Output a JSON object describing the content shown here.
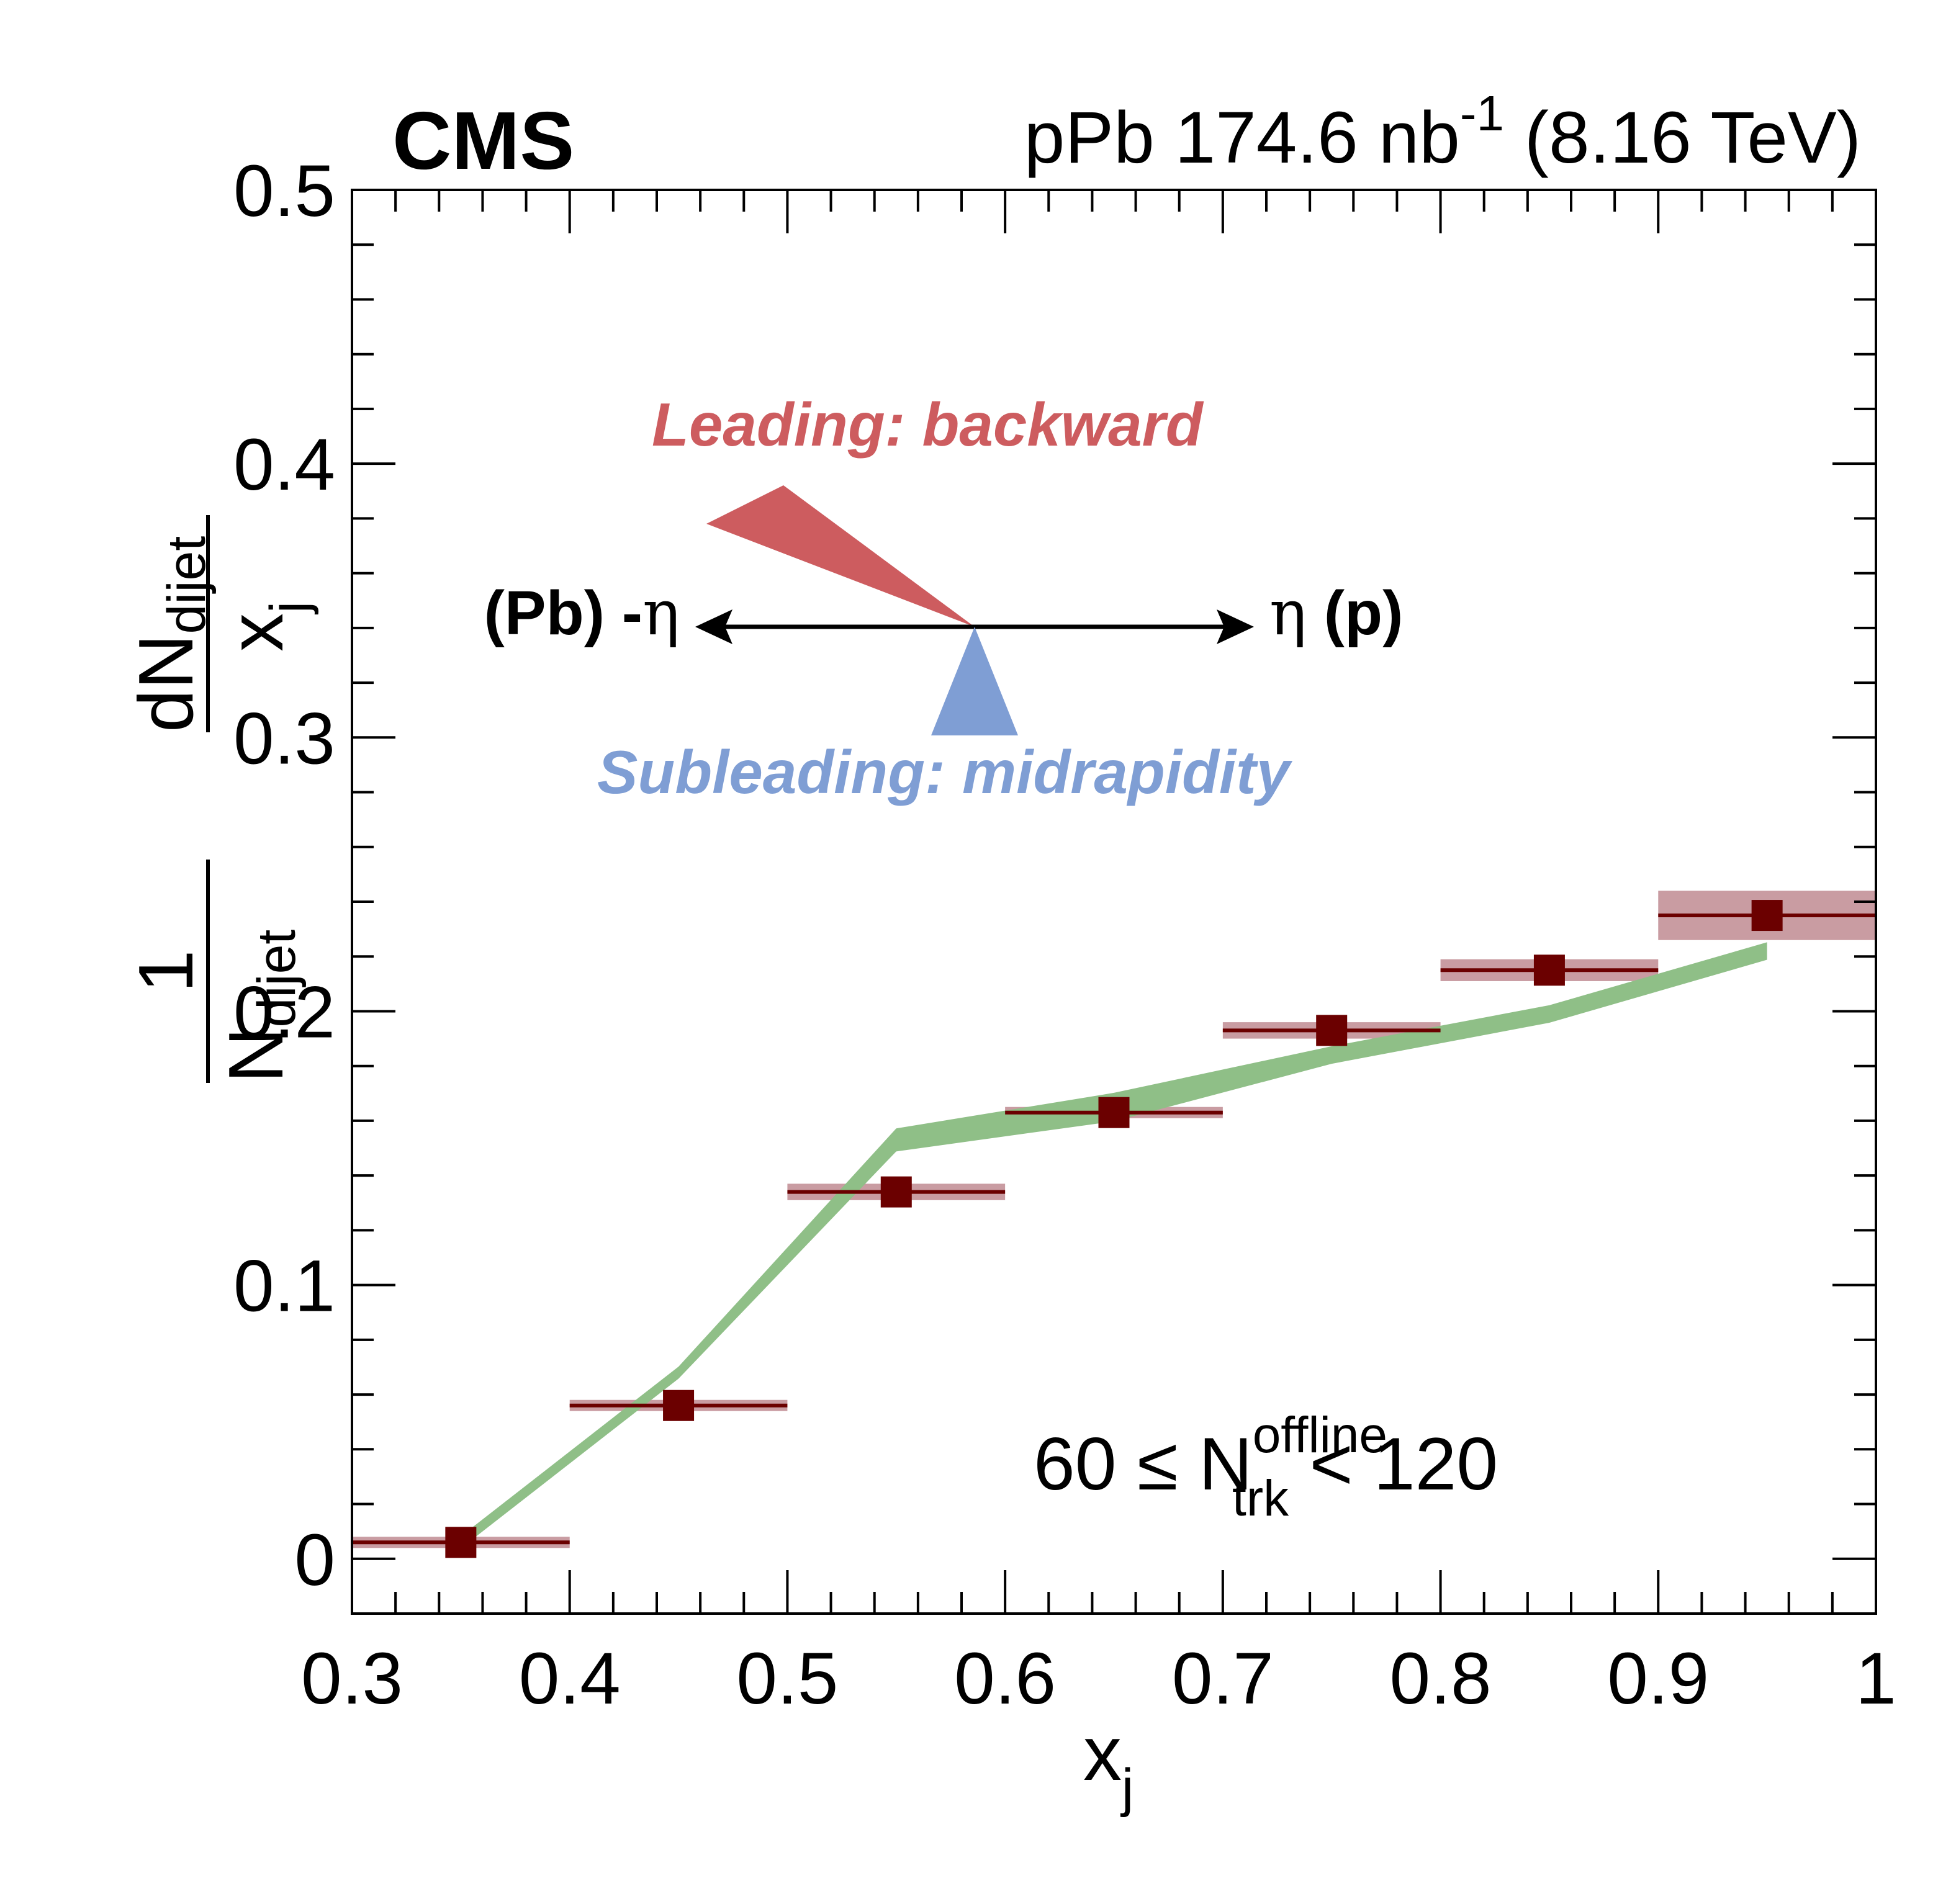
{
  "header": {
    "experiment": "CMS",
    "lumi_prefix": "pPb 174.6 nb",
    "lumi_exp": "-1",
    "lumi_suffix": " (8.16 TeV)"
  },
  "diagram": {
    "leading_label": "Leading: backward",
    "subleading_label": "Midrapidity",
    "subleading_prefix": "Subleading: ",
    "subleading_word": "midrapidity",
    "left_label_text": "(Pb) -",
    "left_label_eta": "η",
    "right_label_eta": "η",
    "right_label_text": " (p)",
    "colors": {
      "leading": "#cd5c5f",
      "subleading": "#7f9ed4"
    }
  },
  "annotation": {
    "prefix": "60 ≤ N",
    "sup": "offline",
    "sub": "trk",
    "suffix": " < 120"
  },
  "axes": {
    "xlabel_main": "x",
    "xlabel_sub": "j",
    "ylabel_num": "1",
    "ylabel_N": "N",
    "ylabel_N_sub": "dijet",
    "ylabel_dN": "dN",
    "ylabel_dN_sub": "dijet",
    "ylabel_den": "x",
    "ylabel_den_sub": "j"
  },
  "chart_data": {
    "type": "scatter",
    "xlim": [
      0.3,
      1.0
    ],
    "ylim": [
      -0.02,
      0.5
    ],
    "x_ticks": [
      0.3,
      0.4,
      0.5,
      0.6,
      0.7,
      0.8,
      0.9,
      1.0
    ],
    "x_tick_labels": [
      "0.3",
      "0.4",
      "0.5",
      "0.6",
      "0.7",
      "0.8",
      "0.9",
      "1"
    ],
    "y_ticks": [
      0,
      0.1,
      0.2,
      0.3,
      0.4,
      0.5
    ],
    "y_tick_labels": [
      "0",
      "0.1",
      "0.2",
      "0.3",
      "0.4",
      "0.5"
    ],
    "colors": {
      "data": "#6b0000",
      "syst": "#c99ca2",
      "model": "#8fbf87"
    },
    "series": [
      {
        "type": "points",
        "x": [
          0.35,
          0.45,
          0.55,
          0.65,
          0.75,
          0.85,
          0.95
        ],
        "xerr": [
          0.05,
          0.05,
          0.05,
          0.05,
          0.05,
          0.05,
          0.05
        ],
        "y": [
          0.006,
          0.056,
          0.134,
          0.163,
          0.193,
          0.215,
          0.235
        ],
        "syst": [
          0.001,
          0.002,
          0.003,
          0.002,
          0.003,
          0.004,
          0.009
        ]
      },
      {
        "type": "band",
        "x": [
          0.35,
          0.45,
          0.55,
          0.65,
          0.75,
          0.85,
          0.95
        ],
        "y": [
          0.006,
          0.068,
          0.153,
          0.165,
          0.184,
          0.199,
          0.222
        ],
        "err": [
          0.001,
          0.001,
          0.003,
          0.004,
          0.002,
          0.002,
          0.002
        ]
      }
    ]
  }
}
